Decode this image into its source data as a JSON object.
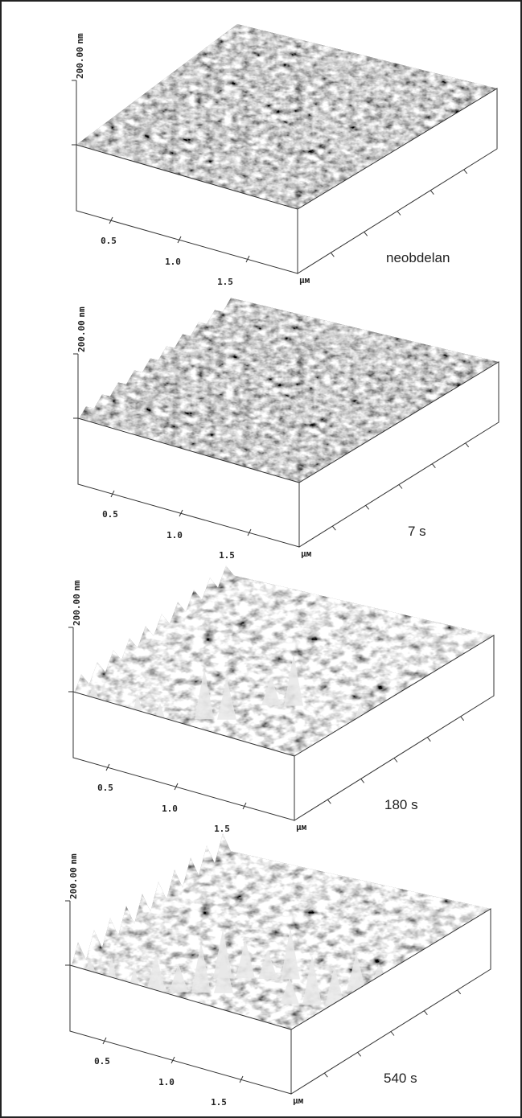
{
  "panels": [
    {
      "z_unit": "nm",
      "z_tick": "200.00",
      "x_ticks": [
        "0.5",
        "1.0",
        "1.5"
      ],
      "x_unit": "μм",
      "caption": "neobdelan"
    },
    {
      "z_unit": "nm",
      "z_tick": "200.00",
      "x_ticks": [
        "0.5",
        "1.0",
        "1.5"
      ],
      "x_unit": "μм",
      "caption": "7 s"
    },
    {
      "z_unit": "nm",
      "z_tick": "200.00",
      "x_ticks": [
        "0.5",
        "1.0",
        "1.5"
      ],
      "x_unit": "μм",
      "caption": "180 s"
    },
    {
      "z_unit": "nm",
      "z_tick": "200.00",
      "x_ticks": [
        "0.5",
        "1.0",
        "1.5"
      ],
      "x_unit": "μм",
      "caption": "540 s"
    }
  ]
}
